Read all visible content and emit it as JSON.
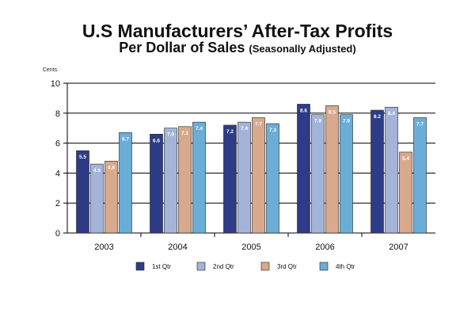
{
  "chart_data": {
    "type": "bar",
    "title": "U.S Manufacturers’ After-Tax Profits",
    "subtitle_main": "Per Dollar of Sales",
    "subtitle_note": "(Seasonally Adjusted)",
    "ylabel": "Cents",
    "xlabel": "",
    "ylim": [
      0,
      10
    ],
    "yticks": [
      "0",
      "2",
      "4",
      "6",
      "8",
      "10"
    ],
    "grid": true,
    "legend_position": "bottom",
    "categories": [
      "2003",
      "2004",
      "2005",
      "2006",
      "2007"
    ],
    "series": [
      {
        "name": "1st Qtr",
        "color": "#2E3C87",
        "values": [
          5.5,
          6.6,
          7.2,
          8.6,
          8.2
        ],
        "labels": [
          "5.5",
          "6.6",
          "7.2",
          "8.6",
          "8.2"
        ]
      },
      {
        "name": "2nd Qtr",
        "color": "#A4B4D8",
        "values": [
          4.6,
          7.0,
          7.4,
          7.9,
          8.4
        ],
        "labels": [
          "4.6",
          "7.0",
          "7.4",
          "7.9",
          "8.4"
        ]
      },
      {
        "name": "3rd Qtr",
        "color": "#D8A98C",
        "values": [
          4.8,
          7.1,
          7.7,
          8.5,
          5.4
        ],
        "labels": [
          "4.8",
          "7.1",
          "7.7",
          "8.5",
          "5.4"
        ]
      },
      {
        "name": "4th Qtr",
        "color": "#6AAED8",
        "values": [
          6.7,
          7.4,
          7.3,
          7.9,
          7.7
        ],
        "labels": [
          "6.7",
          "7.4",
          "7.3",
          "7.9",
          "7.7"
        ]
      }
    ]
  }
}
